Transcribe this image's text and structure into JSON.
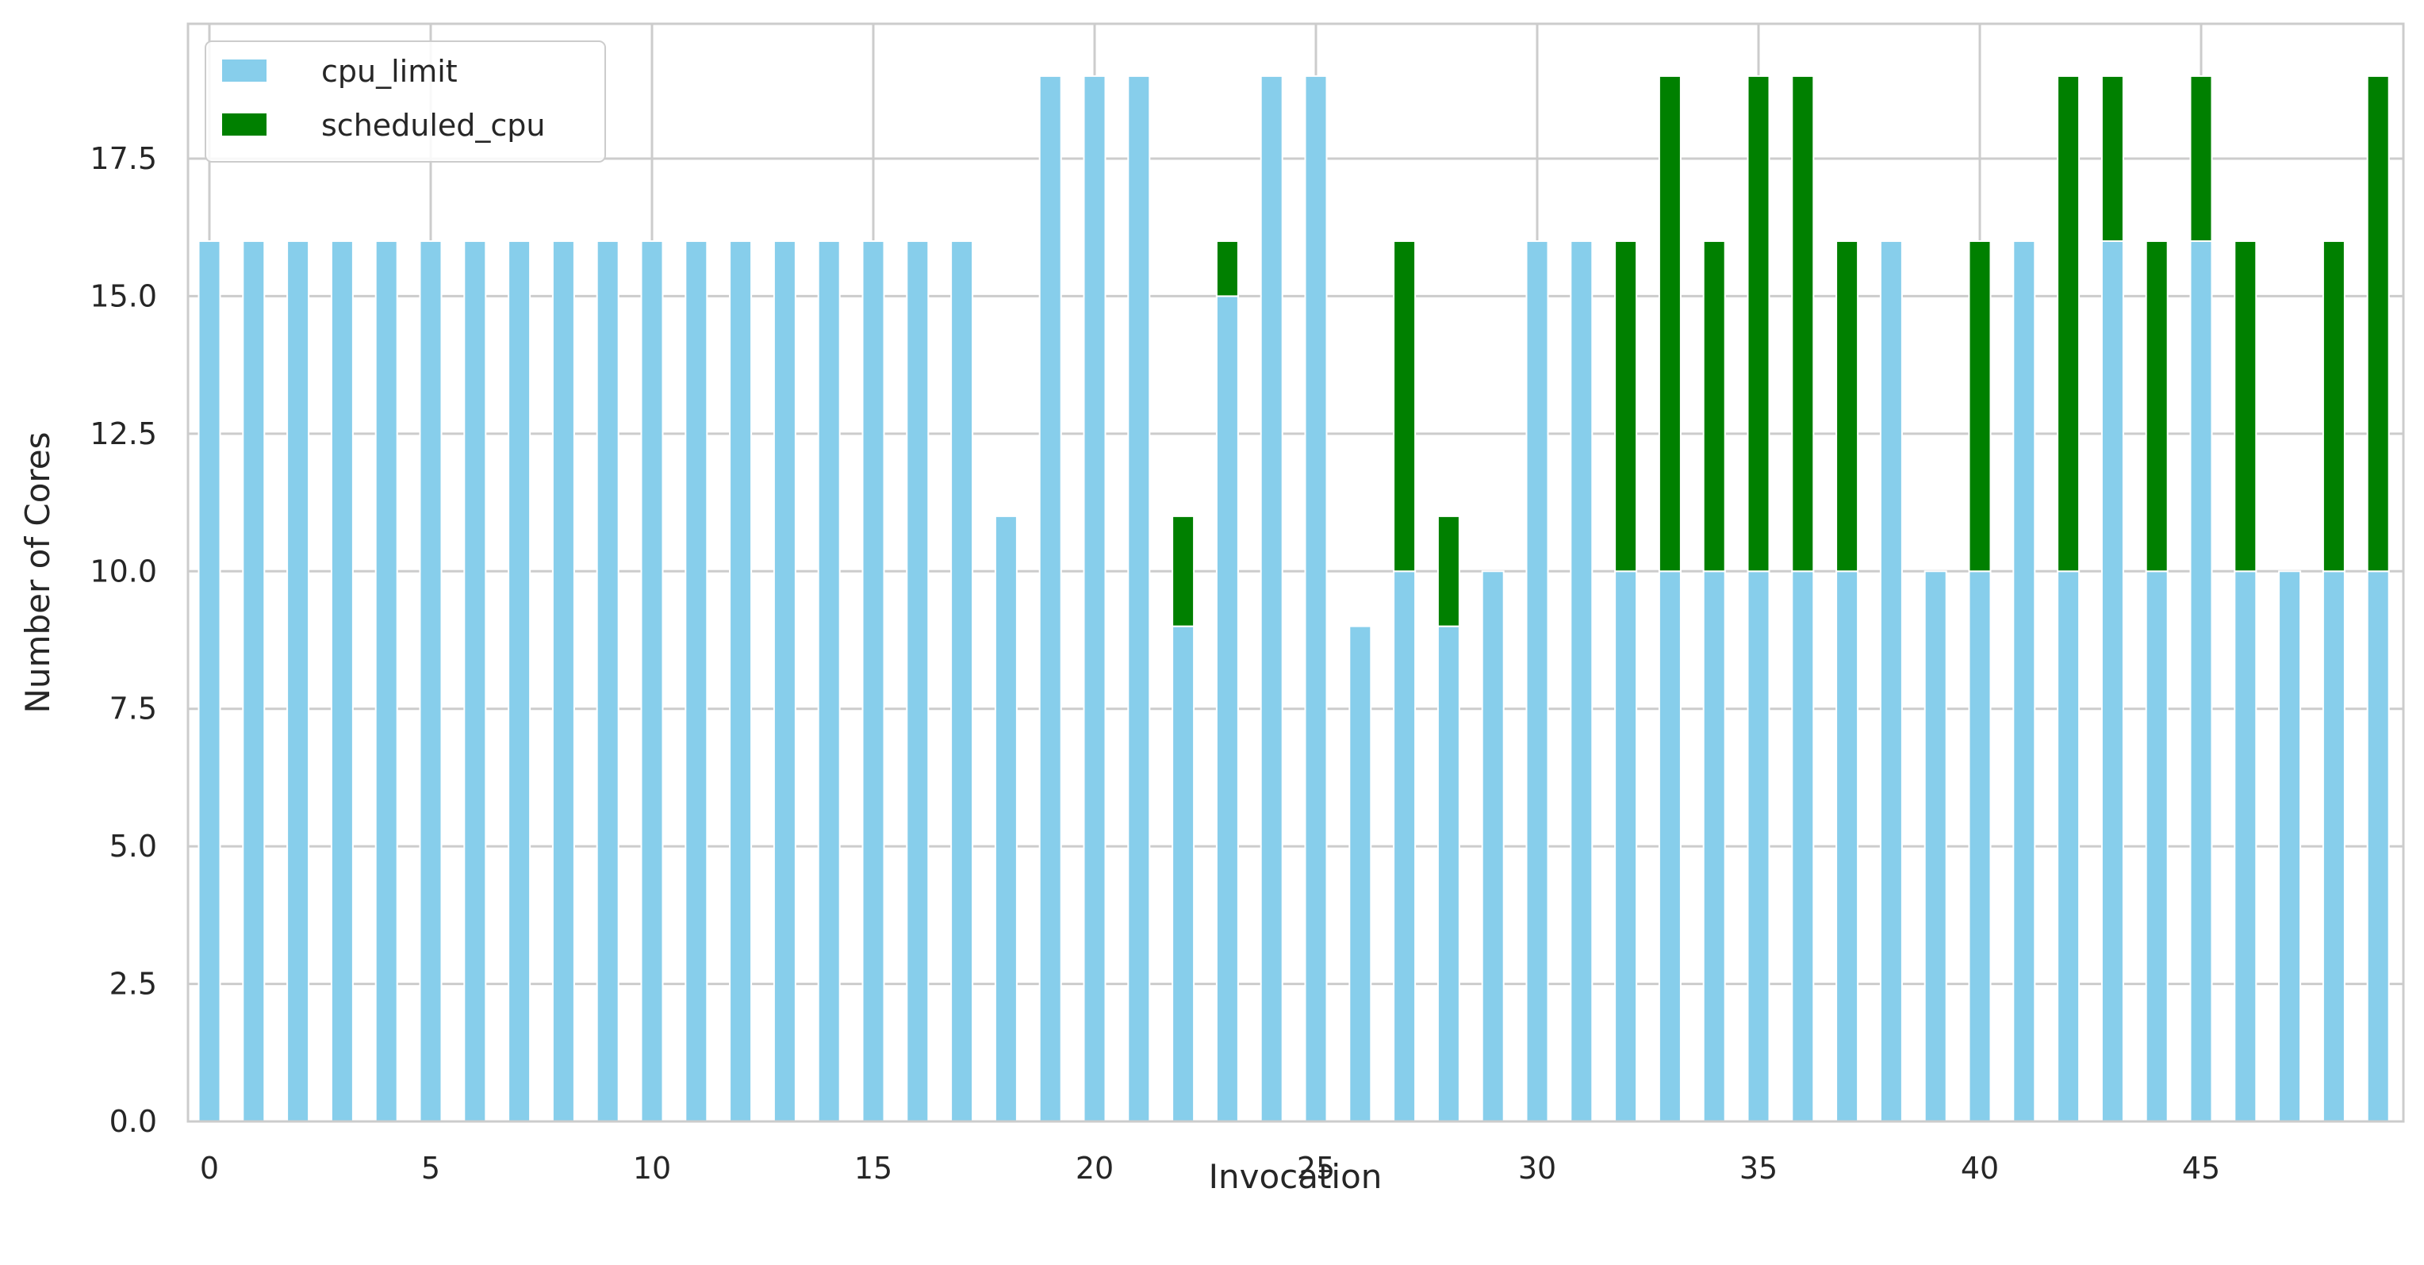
{
  "chart_data": {
    "type": "bar",
    "stacked": true,
    "title": "",
    "xlabel": "Invocation",
    "ylabel": "Number of Cores",
    "ylim": [
      0,
      19.95
    ],
    "yticks": [
      "0.0",
      "2.5",
      "5.0",
      "7.5",
      "10.0",
      "12.5",
      "15.0",
      "17.5"
    ],
    "ytick_values": [
      0,
      2.5,
      5,
      7.5,
      10,
      12.5,
      15,
      17.5
    ],
    "xticks": [
      "0",
      "5",
      "10",
      "15",
      "20",
      "25",
      "30",
      "35",
      "40",
      "45"
    ],
    "xtick_values": [
      0,
      5,
      10,
      15,
      20,
      25,
      30,
      35,
      40,
      45
    ],
    "grid": true,
    "legend_position": "top-left",
    "categories": [
      0,
      1,
      2,
      3,
      4,
      5,
      6,
      7,
      8,
      9,
      10,
      11,
      12,
      13,
      14,
      15,
      16,
      17,
      18,
      19,
      20,
      21,
      22,
      23,
      24,
      25,
      26,
      27,
      28,
      29,
      30,
      31,
      32,
      33,
      34,
      35,
      36,
      37,
      38,
      39,
      40,
      41,
      42,
      43,
      44,
      45,
      46,
      47,
      48,
      49
    ],
    "series": [
      {
        "name": "cpu_limit",
        "color": "#87ceeb",
        "values": [
          16,
          16,
          16,
          16,
          16,
          16,
          16,
          16,
          16,
          16,
          16,
          16,
          16,
          16,
          16,
          16,
          16,
          16,
          11,
          19,
          19,
          19,
          9,
          15,
          19,
          19,
          9,
          10,
          9,
          10,
          16,
          16,
          10,
          10,
          10,
          10,
          10,
          10,
          16,
          10,
          10,
          16,
          10,
          16,
          10,
          16,
          10,
          10,
          10,
          10
        ]
      },
      {
        "name": "scheduled_cpu",
        "color": "#008000",
        "values": [
          0,
          0,
          0,
          0,
          0,
          0,
          0,
          0,
          0,
          0,
          0,
          0,
          0,
          0,
          0,
          0,
          0,
          0,
          0,
          0,
          0,
          0,
          2,
          1,
          0,
          0,
          0,
          6,
          2,
          0,
          0,
          0,
          6,
          9,
          6,
          9,
          9,
          6,
          0,
          0,
          6,
          0,
          9,
          3,
          6,
          3,
          6,
          0,
          6,
          9
        ]
      }
    ]
  }
}
